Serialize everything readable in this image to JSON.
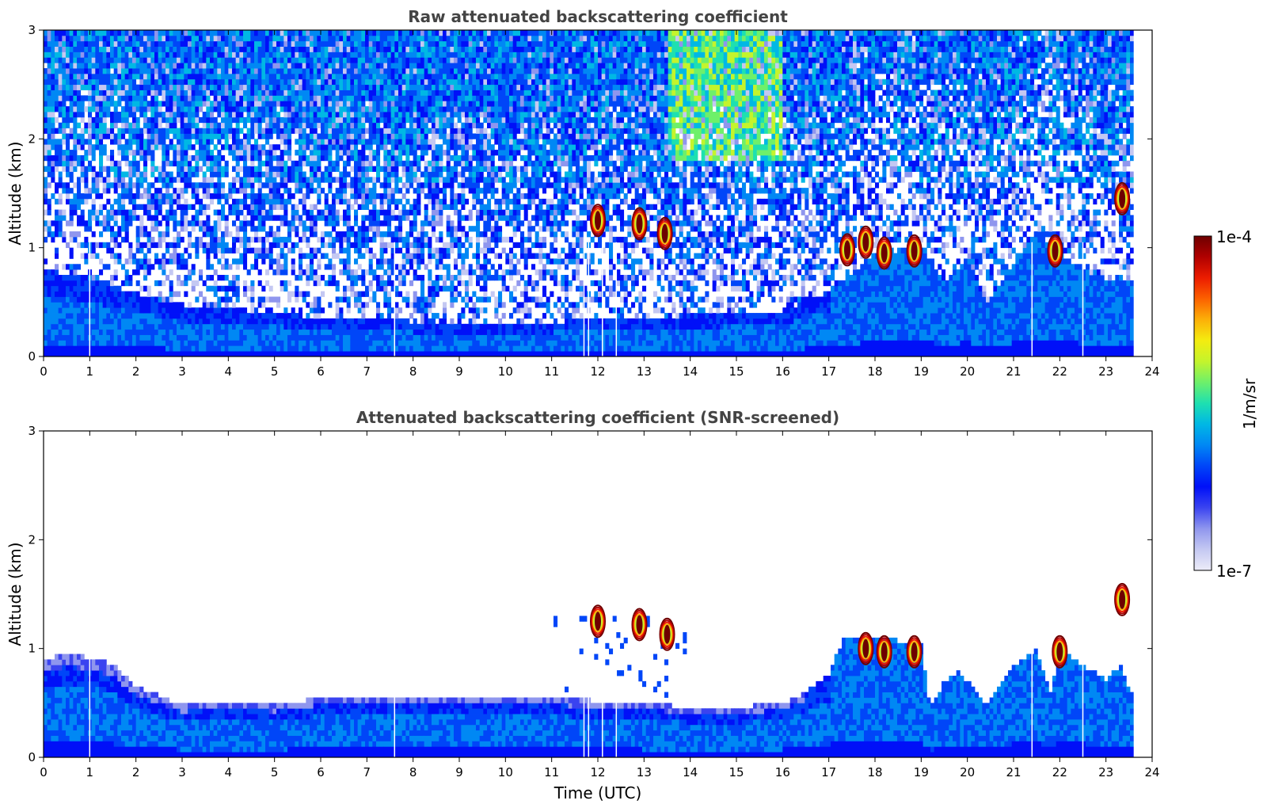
{
  "colormap": [
    "#ececf8",
    "#c4c8f2",
    "#8f96ee",
    "#3a43f0",
    "#0010f8",
    "#0046f8",
    "#0088f4",
    "#00b8e4",
    "#1ee0b0",
    "#6ef06a",
    "#c4f42c",
    "#f4ec10",
    "#fcb008",
    "#fc6000",
    "#ec1c00",
    "#b00000",
    "#6e0000"
  ],
  "chart_data": [
    {
      "type": "heatmap",
      "title": "Raw attenuated backscattering coefficient",
      "xlabel": "",
      "ylabel": "Altitude (km)",
      "xlim": [
        0,
        24
      ],
      "ylim": [
        0,
        3
      ],
      "xticks": [
        "0",
        "1",
        "2",
        "3",
        "4",
        "5",
        "6",
        "7",
        "8",
        "9",
        "10",
        "11",
        "12",
        "13",
        "14",
        "15",
        "16",
        "17",
        "18",
        "19",
        "20",
        "21",
        "22",
        "23",
        "24"
      ],
      "yticks": [
        "0",
        "1",
        "2",
        "3"
      ],
      "data_end_time": 23.6,
      "gap_times": [
        1.0,
        7.6,
        11.7,
        11.8,
        12.1,
        12.4,
        21.4,
        22.5
      ],
      "boundary_layer_top_km": [
        [
          0,
          0.8
        ],
        [
          1,
          0.72
        ],
        [
          2,
          0.58
        ],
        [
          3,
          0.46
        ],
        [
          4,
          0.44
        ],
        [
          5,
          0.4
        ],
        [
          6,
          0.36
        ],
        [
          7,
          0.36
        ],
        [
          8,
          0.32
        ],
        [
          9,
          0.3
        ],
        [
          10,
          0.3
        ],
        [
          11,
          0.32
        ],
        [
          12,
          0.34
        ],
        [
          13,
          0.36
        ],
        [
          14,
          0.38
        ],
        [
          15,
          0.4
        ],
        [
          16,
          0.42
        ],
        [
          17,
          0.6
        ],
        [
          18,
          0.95
        ],
        [
          19,
          1.0
        ],
        [
          19.5,
          0.7
        ],
        [
          20,
          0.9
        ],
        [
          20.4,
          0.5
        ],
        [
          21,
          0.85
        ],
        [
          21.5,
          1.15
        ],
        [
          22,
          0.95
        ],
        [
          22.5,
          0.8
        ],
        [
          23,
          0.72
        ],
        [
          23.6,
          0.7
        ]
      ],
      "cloud_patches": [
        {
          "t": 12.0,
          "z": 1.25
        },
        {
          "t": 12.9,
          "z": 1.22
        },
        {
          "t": 13.45,
          "z": 1.13
        },
        {
          "t": 17.4,
          "z": 0.98
        },
        {
          "t": 17.8,
          "z": 1.05
        },
        {
          "t": 18.2,
          "z": 0.95
        },
        {
          "t": 18.85,
          "z": 0.97
        },
        {
          "t": 21.9,
          "z": 0.97
        },
        {
          "t": 23.35,
          "z": 1.45
        }
      ]
    },
    {
      "type": "heatmap",
      "title": "Attenuated backscattering coefficient (SNR-screened)",
      "xlabel": "Time (UTC)",
      "ylabel": "Altitude (km)",
      "xlim": [
        0,
        24
      ],
      "ylim": [
        0,
        3
      ],
      "xticks": [
        "0",
        "1",
        "2",
        "3",
        "4",
        "5",
        "6",
        "7",
        "8",
        "9",
        "10",
        "11",
        "12",
        "13",
        "14",
        "15",
        "16",
        "17",
        "18",
        "19",
        "20",
        "21",
        "22",
        "23",
        "24"
      ],
      "yticks": [
        "0",
        "1",
        "2",
        "3"
      ],
      "data_end_time": 23.6,
      "gap_times": [
        1.0,
        7.6,
        11.7,
        11.8,
        12.1,
        12.4,
        21.4,
        22.5
      ],
      "screened_top_km": [
        [
          0,
          0.9
        ],
        [
          0.5,
          0.95
        ],
        [
          1,
          0.92
        ],
        [
          1.5,
          0.85
        ],
        [
          2,
          0.65
        ],
        [
          3,
          0.48
        ],
        [
          4,
          0.5
        ],
        [
          5,
          0.48
        ],
        [
          6,
          0.55
        ],
        [
          7,
          0.56
        ],
        [
          8,
          0.55
        ],
        [
          9,
          0.55
        ],
        [
          10,
          0.56
        ],
        [
          11,
          0.55
        ],
        [
          12,
          0.52
        ],
        [
          13,
          0.5
        ],
        [
          14,
          0.46
        ],
        [
          15,
          0.46
        ],
        [
          16,
          0.5
        ],
        [
          16.5,
          0.6
        ],
        [
          17,
          0.75
        ],
        [
          17.3,
          1.08
        ],
        [
          18,
          1.1
        ],
        [
          19,
          1.05
        ],
        [
          19.2,
          0.45
        ],
        [
          19.5,
          0.7
        ],
        [
          19.8,
          0.8
        ],
        [
          20.4,
          0.5
        ],
        [
          21,
          0.85
        ],
        [
          21.5,
          1.0
        ],
        [
          21.8,
          0.6
        ],
        [
          22,
          1.02
        ],
        [
          22.5,
          0.85
        ],
        [
          23,
          0.72
        ],
        [
          23.3,
          0.85
        ],
        [
          23.6,
          0.55
        ]
      ],
      "cloud_patches": [
        {
          "t": 12.0,
          "z": 1.25
        },
        {
          "t": 12.9,
          "z": 1.22
        },
        {
          "t": 13.5,
          "z": 1.13
        },
        {
          "t": 17.8,
          "z": 1.0
        },
        {
          "t": 18.2,
          "z": 0.97
        },
        {
          "t": 18.85,
          "z": 0.97
        },
        {
          "t": 22.0,
          "z": 0.97
        },
        {
          "t": 23.35,
          "z": 1.45
        }
      ]
    }
  ],
  "colorbar": {
    "label": "1/m/sr",
    "max_label": "1e-4",
    "min_label": "1e-7"
  }
}
